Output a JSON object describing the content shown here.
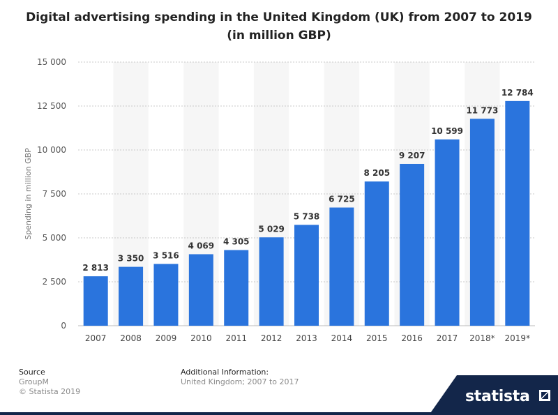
{
  "chart_data": {
    "type": "bar",
    "title": [
      "Digital advertising spending in the United Kingdom (UK) from 2007 to 2019",
      "(in million GBP)"
    ],
    "ylabel": "Spending in million GBP",
    "xlabel": "",
    "ylim": [
      0,
      15000
    ],
    "yticks": [
      0,
      2500,
      5000,
      7500,
      10000,
      12500,
      15000
    ],
    "ytick_labels": [
      "0",
      "2 500",
      "5 000",
      "7 500",
      "10 000",
      "12 500",
      "15 000"
    ],
    "categories": [
      "2007",
      "2008",
      "2009",
      "2010",
      "2011",
      "2012",
      "2013",
      "2014",
      "2015",
      "2016",
      "2017",
      "2018*",
      "2019*"
    ],
    "values": [
      2813,
      3350,
      3516,
      4069,
      4305,
      5029,
      5738,
      6725,
      8205,
      9207,
      10599,
      11773,
      12784
    ],
    "value_labels": [
      "2 813",
      "3 350",
      "3 516",
      "4 069",
      "4 305",
      "5 029",
      "5 738",
      "6 725",
      "8 205",
      "9 207",
      "10 599",
      "11 773",
      "12 784"
    ],
    "bar_color": "#2a74dd",
    "grid": true,
    "legend": "none"
  },
  "footer": {
    "source_heading": "Source",
    "source_name": "GroupM",
    "copyright": "© Statista 2019",
    "additional_heading": "Additional Information:",
    "additional_text": "United Kingdom; 2007 to 2017"
  },
  "branding": {
    "logo_text": "statista",
    "logo_color": "#13264a"
  }
}
